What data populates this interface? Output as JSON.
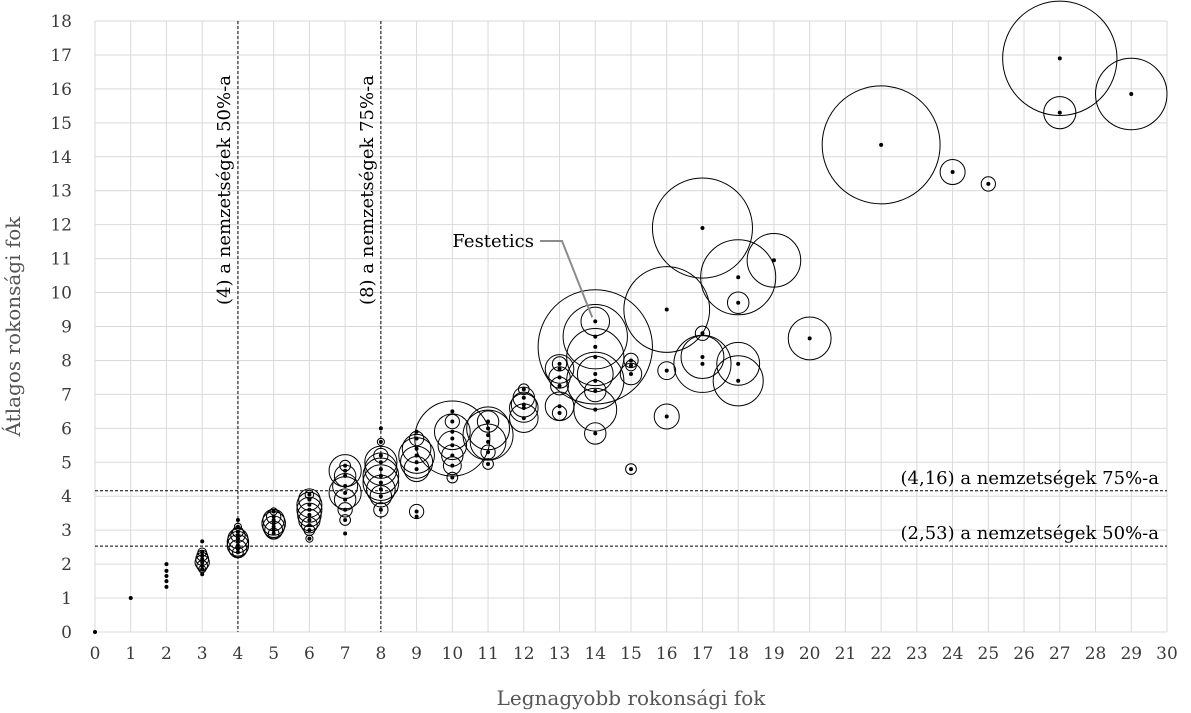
{
  "chart_data": {
    "type": "scatter",
    "xlabel": "Legnagyobb rokonsági fok",
    "ylabel": "Átlagos rokonsági fok",
    "xlim": [
      0,
      30
    ],
    "ylim": [
      0,
      18
    ],
    "x_ticks": [
      "0",
      "1",
      "2",
      "3",
      "4",
      "5",
      "6",
      "7",
      "8",
      "9",
      "10",
      "11",
      "12",
      "13",
      "14",
      "15",
      "16",
      "17",
      "18",
      "19",
      "20",
      "21",
      "22",
      "23",
      "24",
      "25",
      "26",
      "27",
      "28",
      "29",
      "30"
    ],
    "y_ticks": [
      "0",
      "1",
      "2",
      "3",
      "4",
      "5",
      "6",
      "7",
      "8",
      "9",
      "10",
      "11",
      "12",
      "13",
      "14",
      "15",
      "16",
      "17",
      "18"
    ],
    "grid": true,
    "reference_lines": [
      {
        "orientation": "vertical",
        "value": 4,
        "label": "(4) a nemzetségek 50%-a"
      },
      {
        "orientation": "vertical",
        "value": 8,
        "label": "(8) a nemzetségek 75%-a"
      },
      {
        "orientation": "horizontal",
        "value": 4.16,
        "label": "(4,16) a nemzetségek 75%-a"
      },
      {
        "orientation": "horizontal",
        "value": 2.53,
        "label": "(2,53) a nemzetségek 50%-a"
      }
    ],
    "annotation": {
      "label": "Festetics",
      "x": 14,
      "y": 9.15
    },
    "points": [
      {
        "x": 0,
        "y": 0,
        "r": 0
      },
      {
        "x": 1,
        "y": 1,
        "r": 0
      },
      {
        "x": 2,
        "y": 2,
        "r": 0
      },
      {
        "x": 2,
        "y": 1.8,
        "r": 0
      },
      {
        "x": 2,
        "y": 1.65,
        "r": 0
      },
      {
        "x": 2,
        "y": 1.5,
        "r": 0
      },
      {
        "x": 2,
        "y": 1.33,
        "r": 0
      },
      {
        "x": 3,
        "y": 2.67,
        "r": 0
      },
      {
        "x": 3,
        "y": 2.35,
        "r": 0.12
      },
      {
        "x": 3,
        "y": 2.25,
        "r": 0.15
      },
      {
        "x": 3,
        "y": 2.15,
        "r": 0.18
      },
      {
        "x": 3,
        "y": 2.05,
        "r": 0.2
      },
      {
        "x": 3,
        "y": 1.95,
        "r": 0.15
      },
      {
        "x": 3,
        "y": 1.85,
        "r": 0.1
      },
      {
        "x": 3,
        "y": 1.7,
        "r": 0
      },
      {
        "x": 4,
        "y": 3.3,
        "r": 0
      },
      {
        "x": 4,
        "y": 3.1,
        "r": 0.1
      },
      {
        "x": 4,
        "y": 2.95,
        "r": 0.15
      },
      {
        "x": 4,
        "y": 2.85,
        "r": 0.2
      },
      {
        "x": 4,
        "y": 2.75,
        "r": 0.28
      },
      {
        "x": 4,
        "y": 2.65,
        "r": 0.3
      },
      {
        "x": 4,
        "y": 2.55,
        "r": 0.3
      },
      {
        "x": 4,
        "y": 2.45,
        "r": 0.25
      },
      {
        "x": 4,
        "y": 2.35,
        "r": 0.15
      },
      {
        "x": 5,
        "y": 3.55,
        "r": 0.1
      },
      {
        "x": 5,
        "y": 3.4,
        "r": 0.2
      },
      {
        "x": 5,
        "y": 3.3,
        "r": 0.3
      },
      {
        "x": 5,
        "y": 3.2,
        "r": 0.33
      },
      {
        "x": 5,
        "y": 3.1,
        "r": 0.3
      },
      {
        "x": 5,
        "y": 3.0,
        "r": 0.25
      },
      {
        "x": 5,
        "y": 2.9,
        "r": 0.15
      },
      {
        "x": 6,
        "y": 4.05,
        "r": 0.12
      },
      {
        "x": 6,
        "y": 3.9,
        "r": 0.3
      },
      {
        "x": 6,
        "y": 3.75,
        "r": 0.35
      },
      {
        "x": 6,
        "y": 3.6,
        "r": 0.35
      },
      {
        "x": 6,
        "y": 3.45,
        "r": 0.33
      },
      {
        "x": 6,
        "y": 3.3,
        "r": 0.3
      },
      {
        "x": 6,
        "y": 3.15,
        "r": 0.22
      },
      {
        "x": 6,
        "y": 3.0,
        "r": 0.15
      },
      {
        "x": 6,
        "y": 2.75,
        "r": 0.1
      },
      {
        "x": 7,
        "y": 4.9,
        "r": 0.15
      },
      {
        "x": 7,
        "y": 4.75,
        "r": 0.45
      },
      {
        "x": 7,
        "y": 4.6,
        "r": 0.3
      },
      {
        "x": 7,
        "y": 4.3,
        "r": 0.35
      },
      {
        "x": 7,
        "y": 4.1,
        "r": 0.45
      },
      {
        "x": 7,
        "y": 3.9,
        "r": 0.3
      },
      {
        "x": 7,
        "y": 3.6,
        "r": 0.2
      },
      {
        "x": 7,
        "y": 3.3,
        "r": 0.15
      },
      {
        "x": 7,
        "y": 2.9,
        "r": 0
      },
      {
        "x": 8,
        "y": 6.0,
        "r": 0
      },
      {
        "x": 8,
        "y": 5.6,
        "r": 0.1
      },
      {
        "x": 8,
        "y": 5.2,
        "r": 0.2
      },
      {
        "x": 8,
        "y": 5.0,
        "r": 0.45
      },
      {
        "x": 8,
        "y": 4.8,
        "r": 0.45
      },
      {
        "x": 8,
        "y": 4.6,
        "r": 0.5
      },
      {
        "x": 8,
        "y": 4.4,
        "r": 0.5
      },
      {
        "x": 8,
        "y": 4.2,
        "r": 0.4
      },
      {
        "x": 8,
        "y": 4.0,
        "r": 0.3
      },
      {
        "x": 8,
        "y": 3.6,
        "r": 0.2
      },
      {
        "x": 9,
        "y": 5.9,
        "r": 0
      },
      {
        "x": 9,
        "y": 5.7,
        "r": 0.2
      },
      {
        "x": 9,
        "y": 5.4,
        "r": 0.4
      },
      {
        "x": 9,
        "y": 5.2,
        "r": 0.5
      },
      {
        "x": 9,
        "y": 5.0,
        "r": 0.45
      },
      {
        "x": 9,
        "y": 4.8,
        "r": 0.35
      },
      {
        "x": 9,
        "y": 3.55,
        "r": 0.2
      },
      {
        "x": 9,
        "y": 3.4,
        "r": 0
      },
      {
        "x": 10,
        "y": 6.5,
        "r": 0
      },
      {
        "x": 10,
        "y": 6.2,
        "r": 0.2
      },
      {
        "x": 10,
        "y": 5.9,
        "r": 0.5
      },
      {
        "x": 10,
        "y": 5.7,
        "r": 1.05
      },
      {
        "x": 10,
        "y": 5.5,
        "r": 0.4
      },
      {
        "x": 10,
        "y": 5.2,
        "r": 0.3
      },
      {
        "x": 10,
        "y": 4.9,
        "r": 0.25
      },
      {
        "x": 10,
        "y": 4.55,
        "r": 0.15
      },
      {
        "x": 11,
        "y": 6.2,
        "r": 0.3
      },
      {
        "x": 11,
        "y": 6.0,
        "r": 0.6
      },
      {
        "x": 11,
        "y": 5.8,
        "r": 0.7
      },
      {
        "x": 11,
        "y": 5.6,
        "r": 0.5
      },
      {
        "x": 11,
        "y": 5.3,
        "r": 0.2
      },
      {
        "x": 11,
        "y": 4.95,
        "r": 0.15
      },
      {
        "x": 12,
        "y": 7.15,
        "r": 0.15
      },
      {
        "x": 12,
        "y": 6.9,
        "r": 0.3
      },
      {
        "x": 12,
        "y": 6.7,
        "r": 0.35
      },
      {
        "x": 12,
        "y": 6.6,
        "r": 0.4
      },
      {
        "x": 12,
        "y": 6.3,
        "r": 0.4
      },
      {
        "x": 13,
        "y": 7.9,
        "r": 0.2
      },
      {
        "x": 13,
        "y": 7.75,
        "r": 0.4
      },
      {
        "x": 13,
        "y": 7.5,
        "r": 0.3
      },
      {
        "x": 13,
        "y": 7.25,
        "r": 0.25
      },
      {
        "x": 13,
        "y": 6.65,
        "r": 0.4
      },
      {
        "x": 13,
        "y": 6.45,
        "r": 0.2
      },
      {
        "x": 14,
        "y": 9.15,
        "r": 0.4
      },
      {
        "x": 14,
        "y": 8.7,
        "r": 0.9
      },
      {
        "x": 14,
        "y": 8.4,
        "r": 1.6
      },
      {
        "x": 14,
        "y": 8.1,
        "r": 0.8
      },
      {
        "x": 14,
        "y": 7.6,
        "r": 0.5
      },
      {
        "x": 14,
        "y": 7.4,
        "r": 0.8
      },
      {
        "x": 14,
        "y": 7.1,
        "r": 0.3
      },
      {
        "x": 14,
        "y": 6.55,
        "r": 0.6
      },
      {
        "x": 14,
        "y": 5.85,
        "r": 0.3
      },
      {
        "x": 15,
        "y": 8.0,
        "r": 0.2
      },
      {
        "x": 15,
        "y": 7.85,
        "r": 0.15
      },
      {
        "x": 15,
        "y": 7.6,
        "r": 0.3
      },
      {
        "x": 15,
        "y": 4.8,
        "r": 0.15
      },
      {
        "x": 16,
        "y": 9.5,
        "r": 1.2
      },
      {
        "x": 16,
        "y": 7.7,
        "r": 0.25
      },
      {
        "x": 16,
        "y": 6.35,
        "r": 0.35
      },
      {
        "x": 17,
        "y": 11.9,
        "r": 1.4
      },
      {
        "x": 17,
        "y": 8.8,
        "r": 0.2
      },
      {
        "x": 17,
        "y": 8.1,
        "r": 0.6
      },
      {
        "x": 17,
        "y": 7.9,
        "r": 0.8
      },
      {
        "x": 18,
        "y": 10.45,
        "r": 1.05
      },
      {
        "x": 18,
        "y": 9.7,
        "r": 0.3
      },
      {
        "x": 18,
        "y": 7.9,
        "r": 0.6
      },
      {
        "x": 18,
        "y": 7.4,
        "r": 0.7
      },
      {
        "x": 19,
        "y": 10.95,
        "r": 0.75
      },
      {
        "x": 20,
        "y": 8.65,
        "r": 0.6
      },
      {
        "x": 22,
        "y": 14.35,
        "r": 1.65
      },
      {
        "x": 24,
        "y": 13.55,
        "r": 0.35
      },
      {
        "x": 25,
        "y": 13.2,
        "r": 0.2
      },
      {
        "x": 27,
        "y": 16.9,
        "r": 1.6
      },
      {
        "x": 27,
        "y": 15.3,
        "r": 0.45
      },
      {
        "x": 29,
        "y": 15.85,
        "r": 1.0
      }
    ]
  }
}
